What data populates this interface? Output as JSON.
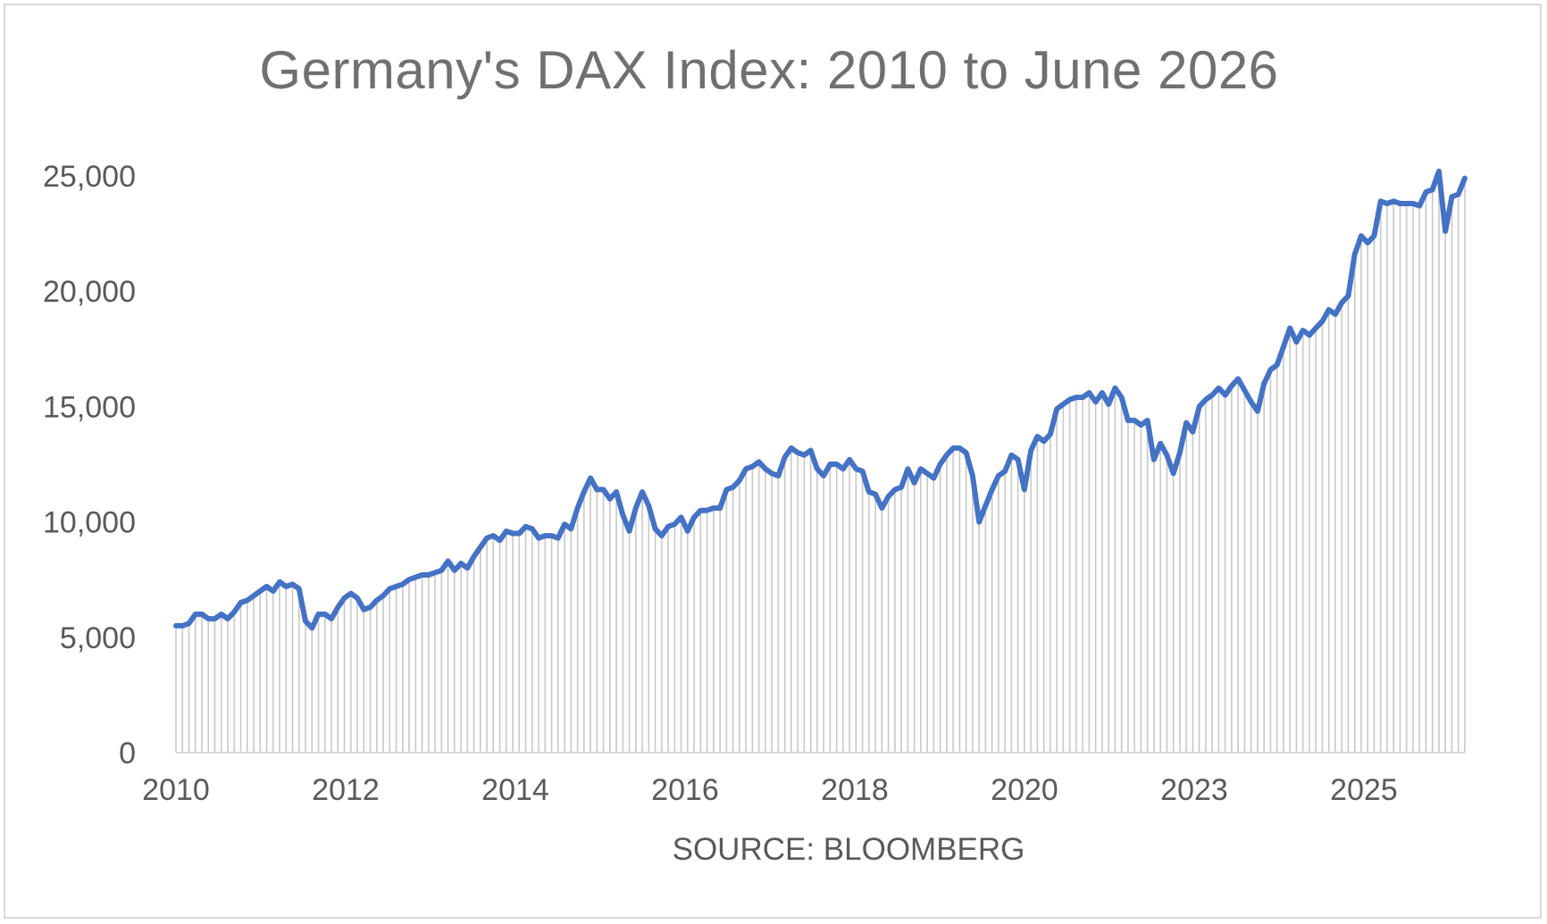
{
  "chart_data": {
    "type": "line",
    "title": "Germany's DAX Index: 2010 to June 2026",
    "xlabel": "SOURCE: BLOOMBERG",
    "ylabel": "",
    "ylim": [
      0,
      25000
    ],
    "yticks": [
      "0",
      "5,000",
      "10,000",
      "15,000",
      "20,000",
      "25,000"
    ],
    "xticks": [
      "2010",
      "2012",
      "2014",
      "2016",
      "2018",
      "2020",
      "2023",
      "2025"
    ],
    "grid": false,
    "legend": "none",
    "line_color": "#4472c4",
    "fill": "light gray vertical drop lines under the line",
    "series": [
      {
        "values": [
          5500,
          5500,
          5600,
          6000,
          6000,
          5800,
          5800,
          6000,
          5800,
          6100,
          6500,
          6600,
          6800,
          7000,
          7200,
          7000,
          7400,
          7200,
          7300,
          7100,
          5700,
          5400,
          6000,
          6000,
          5800,
          6300,
          6700,
          6900,
          6700,
          6200,
          6300,
          6600,
          6800,
          7100,
          7200,
          7300,
          7500,
          7600,
          7700,
          7700,
          7800,
          7900,
          8300,
          7900,
          8200,
          8000,
          8500,
          8900,
          9300,
          9400,
          9200,
          9600,
          9500,
          9500,
          9800,
          9700,
          9300,
          9400,
          9400,
          9300,
          9900,
          9700,
          10600,
          11300,
          11900,
          11400,
          11400,
          11000,
          11300,
          10300,
          9600,
          10600,
          11300,
          10700,
          9700,
          9400,
          9800,
          9900,
          10200,
          9600,
          10200,
          10500,
          10500,
          10600,
          10600,
          11400,
          11500,
          11800,
          12300,
          12400,
          12600,
          12300,
          12100,
          12000,
          12800,
          13200,
          13000,
          12900,
          13100,
          12300,
          12000,
          12500,
          12500,
          12300,
          12700,
          12300,
          12200,
          11300,
          11200,
          10600,
          11100,
          11400,
          11500,
          12300,
          11700,
          12300,
          12100,
          11900,
          12500,
          12900,
          13200,
          13200,
          13000,
          12000,
          10000,
          10700,
          11400,
          12000,
          12200,
          12900,
          12700,
          11400,
          13100,
          13700,
          13500,
          13800,
          14900,
          15100,
          15300,
          15400,
          15400,
          15600,
          15200,
          15600,
          15100,
          15800,
          15400,
          14400,
          14400,
          14200,
          14400,
          12700,
          13400,
          12900,
          12100,
          13000,
          14300,
          13900,
          15000,
          15300,
          15500,
          15800,
          15500,
          15900,
          16200,
          15700,
          15200,
          14800,
          16000,
          16600,
          16800,
          17600,
          18400,
          17800,
          18300,
          18100,
          18400,
          18700,
          19200,
          19000,
          19500,
          19800,
          21600,
          22400,
          22100,
          22400,
          23900,
          23800,
          23900,
          23800,
          23800,
          23800,
          23700,
          24300,
          24400,
          25200,
          22600,
          24100,
          24200,
          24900
        ]
      }
    ]
  }
}
